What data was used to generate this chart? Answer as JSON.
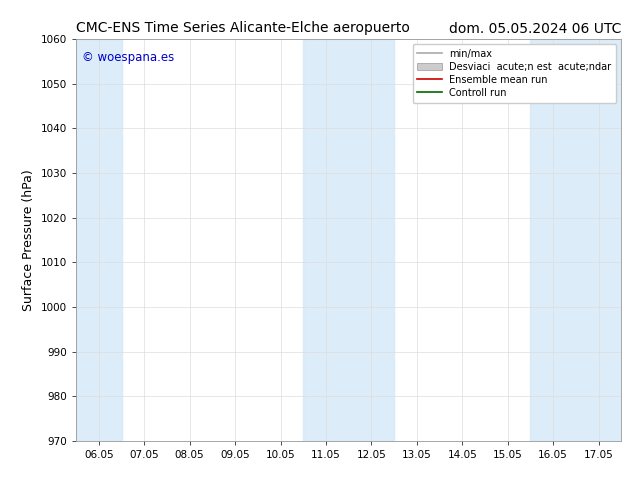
{
  "title_left": "CMC-ENS Time Series Alicante-Elche aeropuerto",
  "title_right": "dom. 05.05.2024 06 UTC",
  "ylabel": "Surface Pressure (hPa)",
  "ylim": [
    970,
    1060
  ],
  "yticks": [
    970,
    980,
    990,
    1000,
    1010,
    1020,
    1030,
    1040,
    1050,
    1060
  ],
  "xtick_labels": [
    "06.05",
    "07.05",
    "08.05",
    "09.05",
    "10.05",
    "11.05",
    "12.05",
    "13.05",
    "14.05",
    "15.05",
    "16.05",
    "17.05"
  ],
  "watermark": "© woespana.es",
  "watermark_color": "#0000cc",
  "bg_color": "#ffffff",
  "plot_bg_color": "#ffffff",
  "shade_color": "#d6e9f8",
  "shade_alpha": 0.85,
  "legend_label_minmax": "min/max",
  "legend_label_std": "Desviaci  acute;n est  acute;ndar",
  "legend_label_ensemble": "Ensemble mean run",
  "legend_label_control": "Controll run",
  "title_fontsize": 10,
  "tick_fontsize": 7.5,
  "ylabel_fontsize": 9,
  "watermark_fontsize": 8.5
}
